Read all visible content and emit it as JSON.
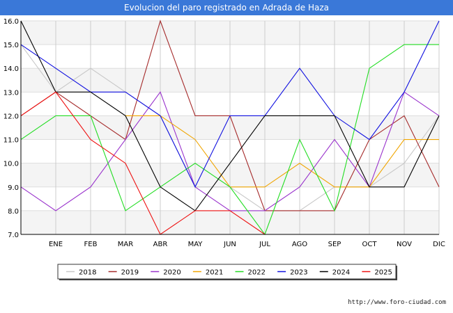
{
  "header": {
    "title": "Evolucion del paro registrado en Adrada de Haza"
  },
  "footer": {
    "url": "http://www.foro-ciudad.com"
  },
  "chart_data": {
    "type": "line",
    "title": "Evolucion del paro registrado en Adrada de Haza",
    "xlabel": "",
    "ylabel": "",
    "categories": [
      "",
      "ENE",
      "FEB",
      "MAR",
      "ABR",
      "MAY",
      "JUN",
      "JUL",
      "AGO",
      "SEP",
      "OCT",
      "NOV",
      "DIC"
    ],
    "ylim": [
      7.0,
      16.0
    ],
    "yticks": [
      "7.0",
      "8.0",
      "9.0",
      "10.0",
      "11.0",
      "12.0",
      "13.0",
      "14.0",
      "15.0",
      "16.0"
    ],
    "grid": true,
    "legend_position": "bottom",
    "series": [
      {
        "name": "2018",
        "color": "#c8c8c8",
        "values": [
          15,
          13,
          14,
          13,
          12,
          9,
          9,
          8,
          8,
          9,
          9,
          10,
          12
        ]
      },
      {
        "name": "2019",
        "color": "#a52a2a",
        "values": [
          12,
          13,
          12,
          11,
          16,
          12,
          12,
          8,
          8,
          8,
          11,
          12,
          9
        ]
      },
      {
        "name": "2020",
        "color": "#9932cc",
        "values": [
          9,
          8,
          9,
          11,
          13,
          9,
          8,
          8,
          9,
          11,
          9,
          13,
          12
        ]
      },
      {
        "name": "2021",
        "color": "#f0a500",
        "values": [
          null,
          null,
          null,
          12,
          12,
          11,
          9,
          9,
          10,
          9,
          9,
          11,
          11
        ]
      },
      {
        "name": "2022",
        "color": "#22dd22",
        "values": [
          11,
          12,
          12,
          8,
          9,
          10,
          9,
          7,
          11,
          8,
          14,
          15,
          15
        ]
      },
      {
        "name": "2023",
        "color": "#1010e0",
        "values": [
          15,
          14,
          13,
          13,
          12,
          9,
          12,
          12,
          14,
          12,
          11,
          13,
          16
        ]
      },
      {
        "name": "2024",
        "color": "#000000",
        "values": [
          16,
          13,
          13,
          12,
          9,
          8,
          10,
          12,
          12,
          12,
          9,
          9,
          12
        ]
      },
      {
        "name": "2025",
        "color": "#ee1111",
        "values": [
          12,
          13,
          11,
          10,
          7,
          8,
          8,
          7,
          null,
          null,
          null,
          null,
          null
        ]
      }
    ]
  }
}
